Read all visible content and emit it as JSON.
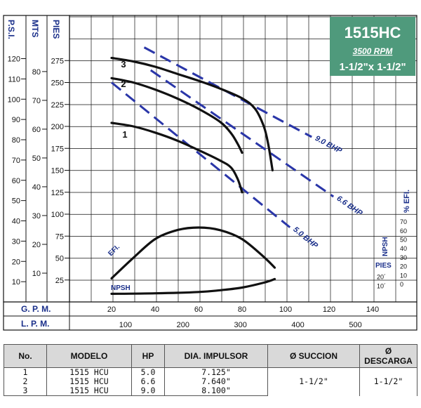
{
  "header": {
    "model": "1515HC",
    "speed": "3500 RPM",
    "size": "1-1/2\"x 1-1/2\""
  },
  "chart_data": {
    "type": "line",
    "grid": true,
    "axes": {
      "psi": {
        "label": "P.S.I.",
        "ticks": [
          10,
          20,
          30,
          40,
          50,
          60,
          70,
          80,
          90,
          100,
          110,
          120
        ]
      },
      "mts": {
        "label": "MTS",
        "ticks": [
          10,
          20,
          30,
          40,
          50,
          60,
          70,
          80
        ]
      },
      "pies": {
        "label": "PIES",
        "ticks": [
          25,
          50,
          75,
          100,
          125,
          150,
          175,
          200,
          225,
          250,
          275
        ],
        "ylim": [
          0,
          300
        ]
      },
      "gpm": {
        "label": "G. P. M.",
        "ticks": [
          20,
          40,
          60,
          80,
          100,
          120,
          140
        ],
        "xlim": [
          0,
          150
        ]
      },
      "lpm": {
        "label": "L. P. M.",
        "ticks": [
          100,
          200,
          300,
          400,
          500
        ]
      },
      "efficiency": {
        "label": "% EFI.",
        "ticks": [
          0,
          10,
          20,
          30,
          40,
          50,
          60,
          70
        ]
      },
      "npsh": {
        "label": "NPSH",
        "unit": "PIES",
        "ticks": [
          "10´",
          "20´"
        ]
      }
    },
    "series": [
      {
        "name": "1",
        "x": [
          20,
          30,
          40,
          50,
          60,
          70,
          75,
          78,
          80
        ],
        "y": [
          204,
          200,
          193,
          184,
          173,
          161,
          153,
          140,
          125
        ]
      },
      {
        "name": "2",
        "x": [
          20,
          30,
          40,
          50,
          60,
          70,
          75,
          78,
          80
        ],
        "y": [
          255,
          250,
          242,
          232,
          220,
          205,
          192,
          180,
          170
        ]
      },
      {
        "name": "3",
        "x": [
          20,
          30,
          40,
          50,
          60,
          70,
          80,
          86,
          90,
          92,
          94
        ],
        "y": [
          278,
          274,
          268,
          260,
          252,
          243,
          232,
          220,
          200,
          180,
          150
        ]
      }
    ],
    "bhp_lines": [
      {
        "name": "5.0 BHP",
        "x": [
          20,
          102
        ],
        "y": [
          250,
          85
        ]
      },
      {
        "name": "6.6 BHP",
        "x": [
          38,
          122
        ],
        "y": [
          264,
          120
        ]
      },
      {
        "name": "9.0 BHP",
        "x": [
          35,
          112
        ],
        "y": [
          290,
          188
        ]
      }
    ],
    "efficiency_curve": {
      "name": "EFI.",
      "x": [
        20,
        30,
        40,
        50,
        60,
        70,
        80,
        90,
        95
      ],
      "y": [
        6,
        29,
        50,
        60,
        63,
        60,
        50,
        30,
        18
      ]
    },
    "npsh_curve": {
      "name": "NPSH",
      "x": [
        20,
        40,
        60,
        70,
        80,
        90,
        95
      ],
      "y": [
        0.5,
        1.0,
        2.5,
        4.5,
        7.5,
        13,
        17
      ]
    }
  },
  "table": {
    "headers": [
      "No.",
      "MODELO",
      "HP",
      "DIA. IMPULSOR",
      "Ø SUCCION",
      "Ø DESCARGA"
    ],
    "rows": [
      [
        "1",
        "1515 HCU",
        "5.0",
        "7.125\""
      ],
      [
        "2",
        "1515 HCU",
        "6.6",
        "7.640\""
      ],
      [
        "3",
        "1515 HCU",
        "9.0",
        "8.100\""
      ]
    ],
    "suction": "1-1/2\"",
    "discharge": "1-1/2\""
  },
  "colors": {
    "header_bg": "#4f9a7c",
    "axis_text": "#1a2f8a",
    "bhp_line": "#2a36a8",
    "curve": "#111111"
  }
}
